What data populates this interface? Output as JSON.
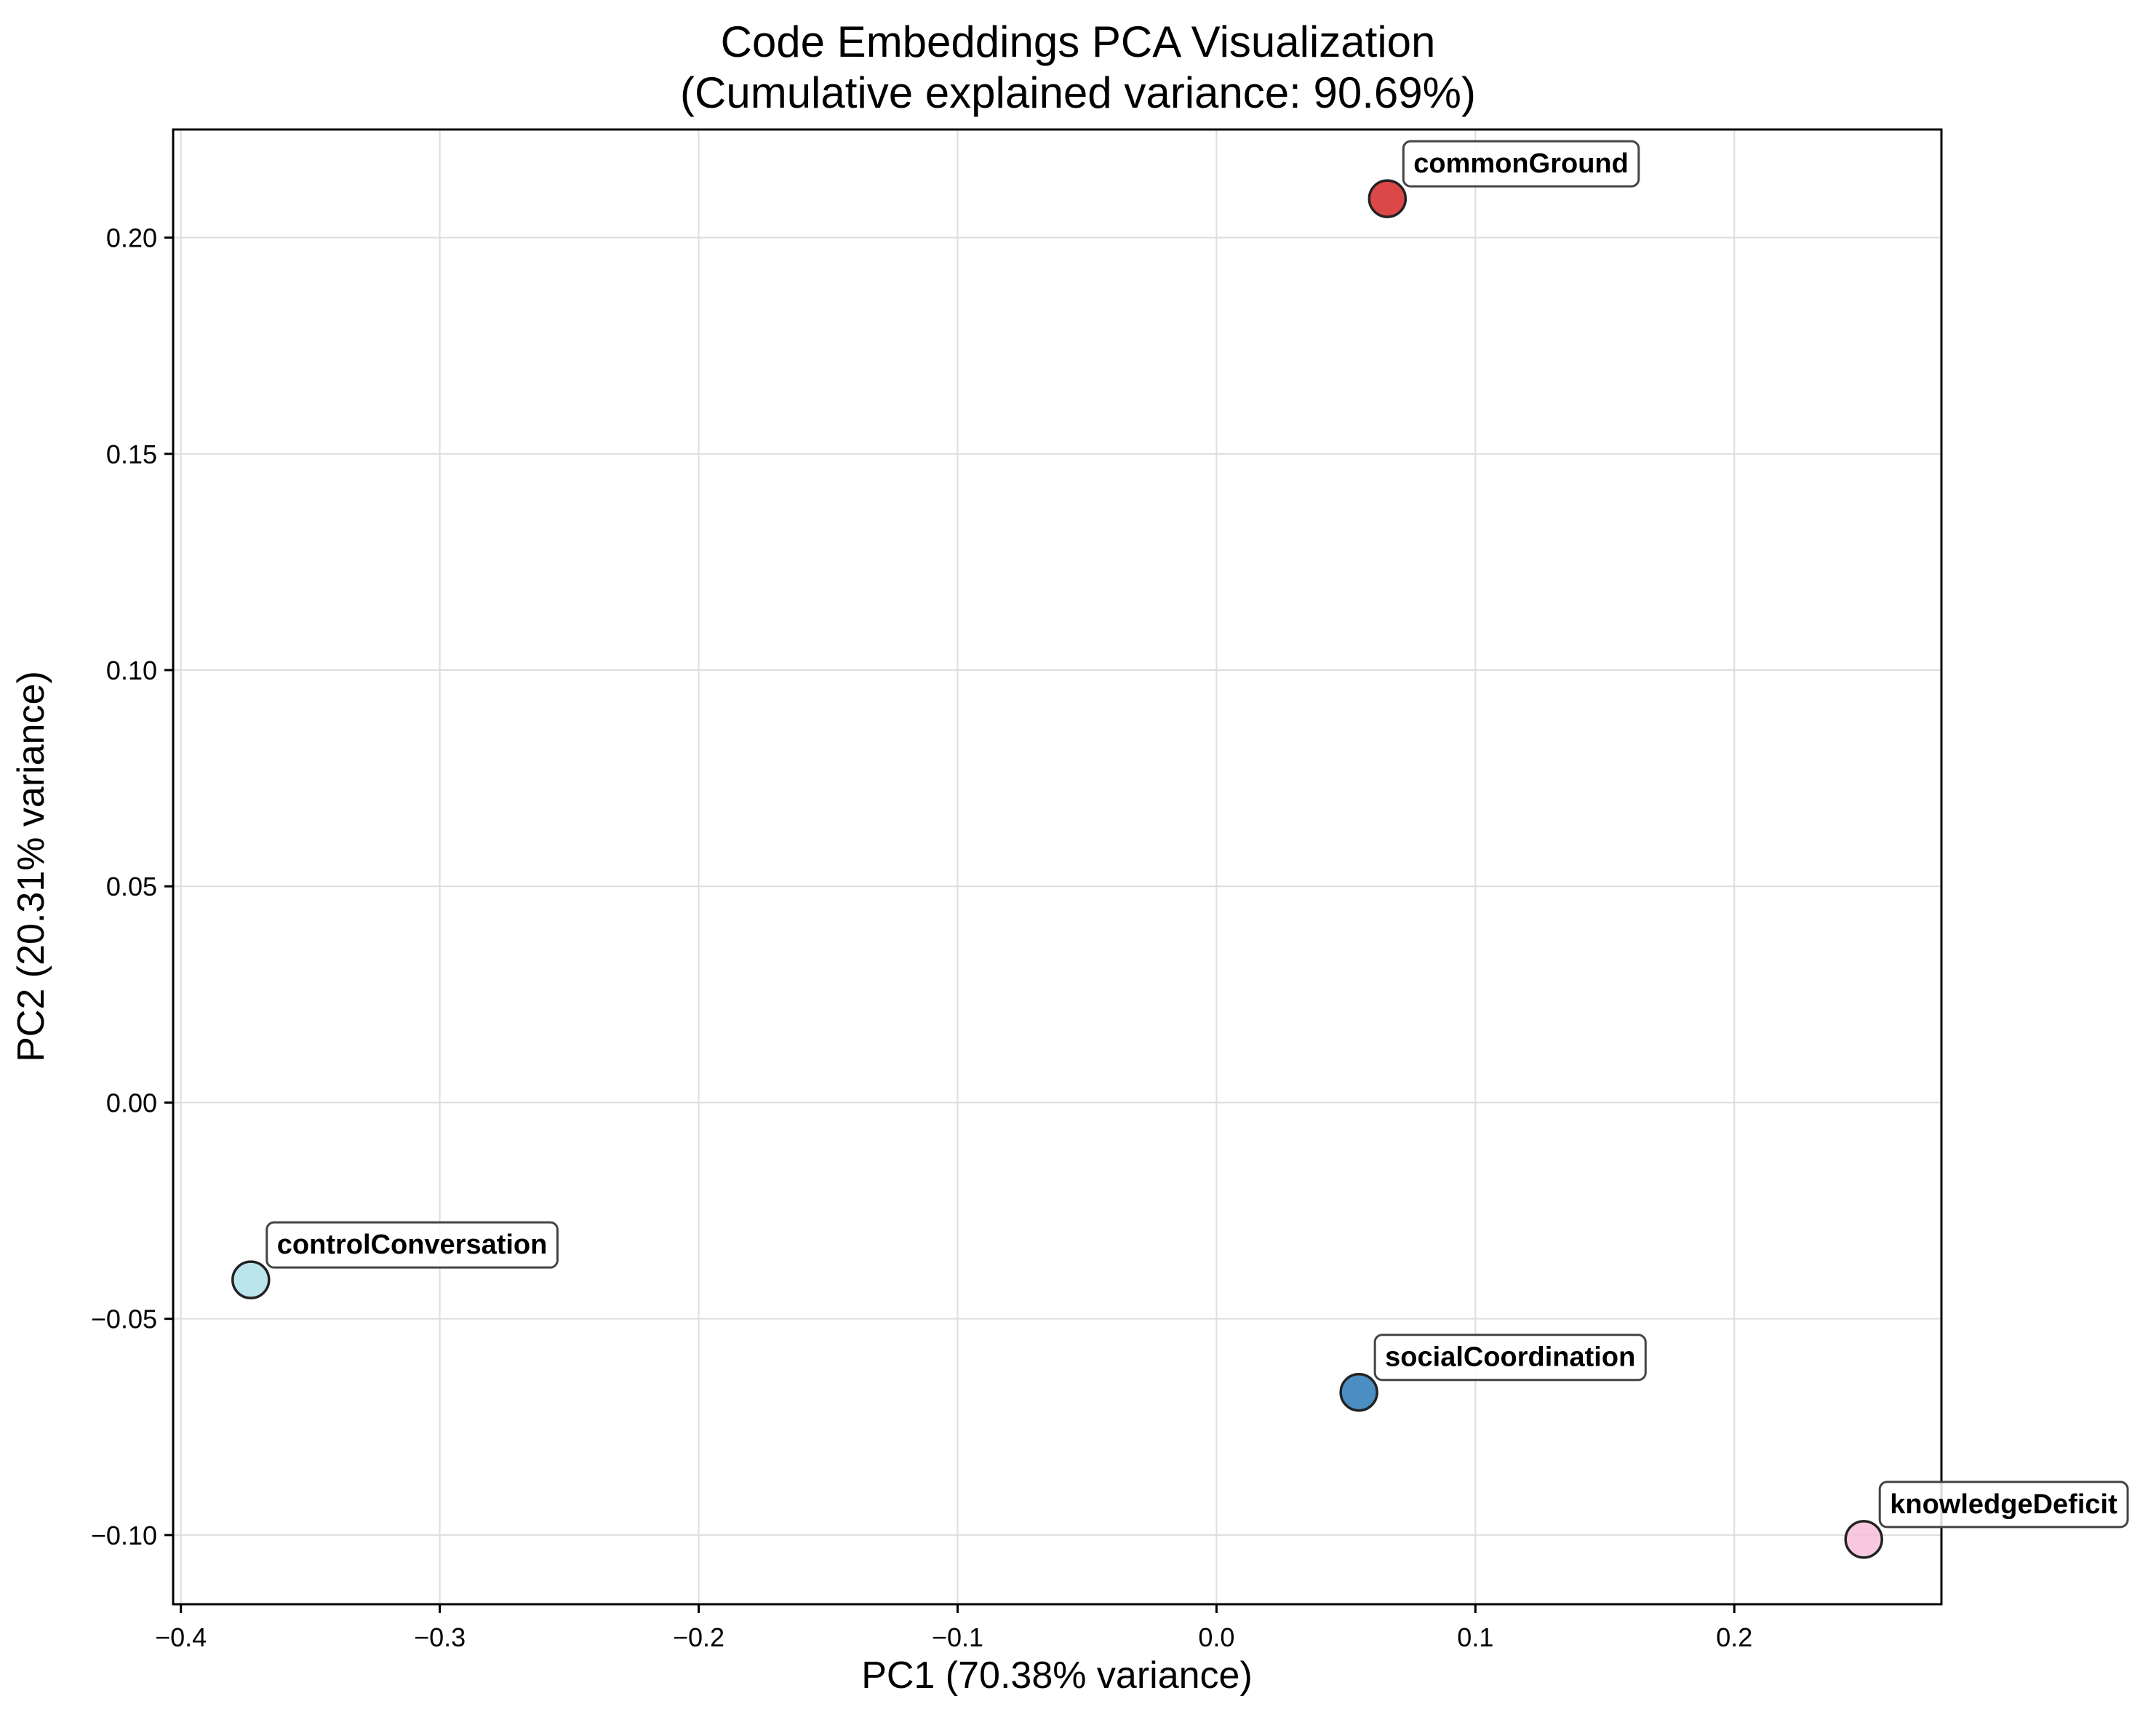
{
  "chart_data": {
    "type": "scatter",
    "title": "Code Embeddings PCA Visualization",
    "subtitle": "(Cumulative explained variance: 90.69%)",
    "xlabel": "PC1 (70.38% variance)",
    "ylabel": "PC2 (20.31% variance)",
    "xlim": [
      -0.403,
      0.28
    ],
    "ylim": [
      -0.116,
      0.225
    ],
    "grid": true,
    "xticks": [
      -0.4,
      -0.3,
      -0.2,
      -0.1,
      0.0,
      0.1,
      0.2
    ],
    "xtick_labels": [
      "−0.4",
      "−0.3",
      "−0.2",
      "−0.1",
      "0.0",
      "0.1",
      "0.2"
    ],
    "yticks": [
      -0.1,
      -0.05,
      0.0,
      0.05,
      0.1,
      0.15,
      0.2
    ],
    "ytick_labels": [
      "−0.10",
      "−0.05",
      "0.00",
      "0.05",
      "0.10",
      "0.15",
      "0.20"
    ],
    "points": [
      {
        "label": "commonGround",
        "x": 0.066,
        "y": 0.209,
        "color": "#d62728"
      },
      {
        "label": "controlConversation",
        "x": -0.373,
        "y": -0.041,
        "color": "#aee0ea"
      },
      {
        "label": "socialCoordination",
        "x": 0.055,
        "y": -0.067,
        "color": "#2a7ab8"
      },
      {
        "label": "knowledgeDeficit",
        "x": 0.25,
        "y": -0.101,
        "color": "#f7c0d8"
      }
    ]
  }
}
